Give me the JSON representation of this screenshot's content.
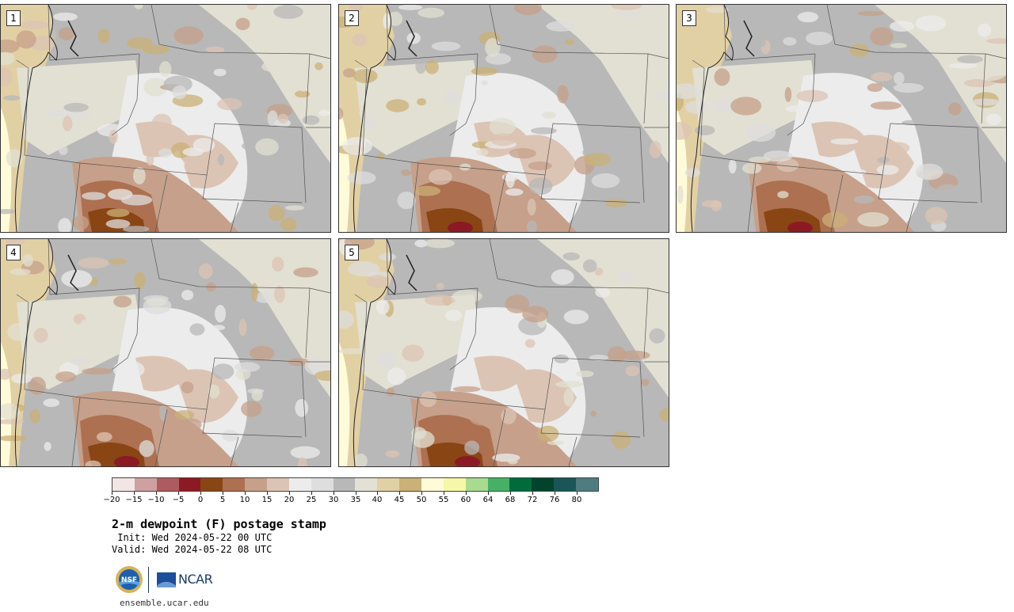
{
  "panels": [
    {
      "label": "1",
      "variant": 0
    },
    {
      "label": "2",
      "variant": 1
    },
    {
      "label": "3",
      "variant": 2
    },
    {
      "label": "4",
      "variant": 3
    },
    {
      "label": "5",
      "variant": 4
    }
  ],
  "colorbar": {
    "colors": [
      "#f1e6e4",
      "#cea0a2",
      "#ae5b5f",
      "#8b1a24",
      "#8a4515",
      "#ad7050",
      "#c6a08a",
      "#dcc4b4",
      "#ececec",
      "#dedede",
      "#b8b8b8",
      "#e3e1d3",
      "#e2d0a5",
      "#cbb077",
      "#fffbd9",
      "#f6f7a8",
      "#a8db90",
      "#46b166",
      "#016b3c",
      "#02432c",
      "#1a5658",
      "#4f7c7e"
    ],
    "ticks": [
      "−20",
      "−15",
      "−10",
      "−5",
      "0",
      "5",
      "10",
      "15",
      "20",
      "25",
      "30",
      "35",
      "40",
      "45",
      "50",
      "55",
      "60",
      "64",
      "68",
      "72",
      "76",
      "80"
    ]
  },
  "title": "2-m dewpoint (F) postage stamp",
  "init": " Init: Wed 2024-05-22 00 UTC",
  "valid": "Valid: Wed 2024-05-22 08 UTC",
  "logos": {
    "nsf": "NSF",
    "ncar": "NCAR"
  },
  "url": "ensemble.ucar.edu"
}
